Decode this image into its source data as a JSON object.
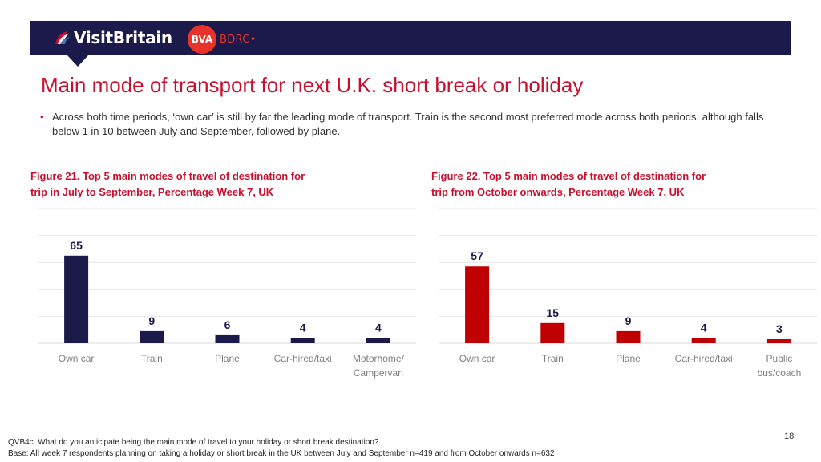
{
  "header": {
    "visitbritain_text": "VisitBritain",
    "bva_text": "BVA",
    "bdrc_text": "BDRC•"
  },
  "title": "Main mode of transport for next U.K. short break or holiday",
  "bullet_text": "Across both time periods, ‘own car’ is still by far the leading mode of transport. Train is the second most preferred mode across both periods, although falls below 1 in 10 between July and September, followed by plane.",
  "chart_data": [
    {
      "type": "bar",
      "title_line1": "Figure 21. Top 5 main modes of travel of destination for",
      "title_line2": "trip in July to September, Percentage Week 7, UK",
      "categories": [
        [
          "Own car"
        ],
        [
          "Train"
        ],
        [
          "Plane"
        ],
        [
          "Car-hired/taxi"
        ],
        [
          "Motorhome/",
          "Campervan"
        ]
      ],
      "values": [
        65,
        9,
        6,
        4,
        4
      ],
      "color": "#1b1a4a",
      "ylim": [
        0,
        100
      ],
      "grid": true
    },
    {
      "type": "bar",
      "title_line1": "Figure 22. Top 5 main modes of travel of destination for",
      "title_line2": "trip from October onwards, Percentage Week 7, UK",
      "categories": [
        [
          "Own car"
        ],
        [
          "Train"
        ],
        [
          "Plane"
        ],
        [
          "Car-hired/taxi"
        ],
        [
          "Public",
          "bus/coach"
        ]
      ],
      "values": [
        57,
        15,
        9,
        4,
        3
      ],
      "color": "#c00000",
      "ylim": [
        0,
        100
      ],
      "grid": true
    }
  ],
  "footnote_1": "QVB4c.  What do you anticipate being the main mode of travel to your holiday or short break destination?",
  "footnote_2": "Base: All week 7 respondents planning on taking a holiday or short break in the UK between July and September n=419 and from October onwards n=632",
  "page_number": "18"
}
